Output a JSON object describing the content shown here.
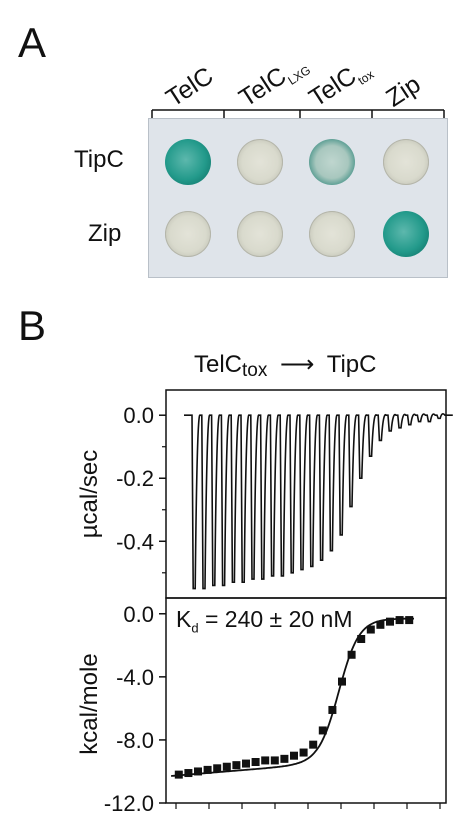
{
  "panel_a": {
    "letter": "A",
    "columns": [
      {
        "main": "TelC",
        "sub": ""
      },
      {
        "main": "TelC",
        "sub": "LXG"
      },
      {
        "main": "TelC",
        "sub": "tox"
      },
      {
        "main": "Zip",
        "sub": ""
      }
    ],
    "rows": [
      "TipC",
      "Zip"
    ],
    "spot_intensity": [
      [
        "strong",
        "pale",
        "mid",
        "pale"
      ],
      [
        "pale",
        "pale",
        "pale",
        "strong"
      ]
    ],
    "colors": {
      "strong": "#239a8b",
      "pale": "#d9dacd",
      "plate": "#dfe4ea"
    }
  },
  "panel_b": {
    "letter": "B",
    "title_main": "TelC",
    "title_sub": "tox",
    "title_arrow": "⟶",
    "title_target": "TipC",
    "kd_prefix": "K",
    "kd_sub": "d",
    "kd_value": " = 240 ± 20 nM",
    "chart_data": [
      {
        "type": "line",
        "ylabel": "µcal/sec",
        "ylim": [
          -0.58,
          0.08
        ],
        "yticks": [
          "0.0",
          "-0.2",
          "-0.4"
        ],
        "ytick_values": [
          0.0,
          -0.2,
          -0.4
        ],
        "injection_peaks": [
          -0.55,
          -0.55,
          -0.54,
          -0.54,
          -0.53,
          -0.53,
          -0.52,
          -0.52,
          -0.51,
          -0.51,
          -0.5,
          -0.49,
          -0.48,
          -0.46,
          -0.43,
          -0.38,
          -0.29,
          -0.2,
          -0.13,
          -0.08,
          -0.05,
          -0.04,
          -0.03,
          -0.02,
          -0.02,
          -0.01
        ]
      },
      {
        "type": "scatter",
        "ylabel": "kcal/mole",
        "ylim": [
          -12.0,
          1.0
        ],
        "yticks": [
          "0.0",
          "-4.0",
          "-8.0",
          "-12.0"
        ],
        "ytick_values": [
          0.0,
          -4.0,
          -8.0,
          -12.0
        ],
        "x": [
          1,
          2,
          3,
          4,
          5,
          6,
          7,
          8,
          9,
          10,
          11,
          12,
          13,
          14,
          15,
          16,
          17,
          18,
          19,
          20,
          21,
          22,
          23,
          24,
          25
        ],
        "y": [
          -10.2,
          -10.1,
          -10.0,
          -9.9,
          -9.8,
          -9.7,
          -9.6,
          -9.5,
          -9.4,
          -9.3,
          -9.3,
          -9.2,
          -9.0,
          -8.8,
          -8.3,
          -7.4,
          -6.1,
          -4.3,
          -2.6,
          -1.6,
          -1.0,
          -0.7,
          -0.5,
          -0.4,
          -0.4
        ]
      }
    ]
  }
}
